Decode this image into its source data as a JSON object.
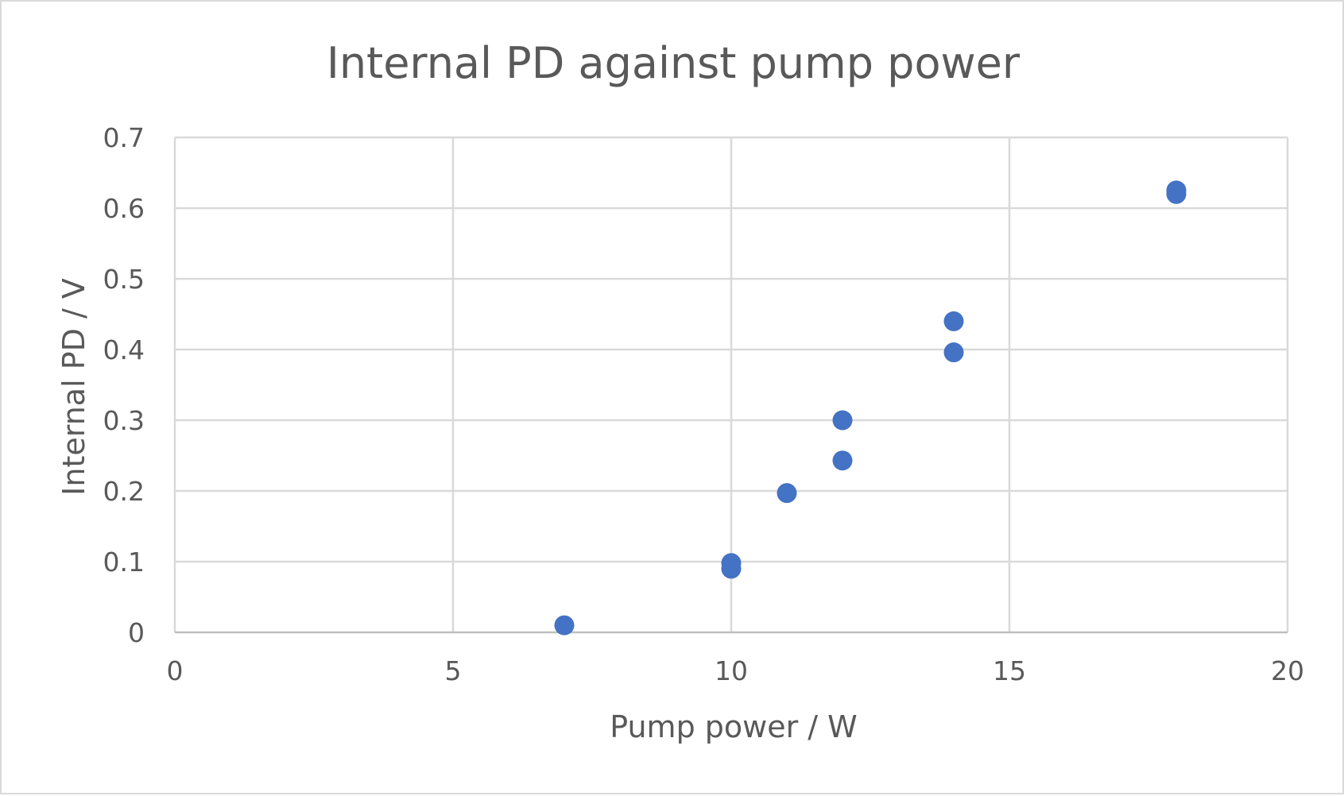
{
  "chart_data": {
    "type": "scatter",
    "title": "Internal PD against pump power",
    "xlabel": "Pump power / W",
    "ylabel": "Internal PD / V",
    "xlim": [
      0,
      20
    ],
    "ylim": [
      0,
      0.7
    ],
    "x_ticks": [
      0,
      5,
      10,
      15,
      20
    ],
    "y_ticks": [
      0,
      0.1,
      0.2,
      0.3,
      0.4,
      0.5,
      0.6,
      0.7
    ],
    "x_tick_labels": [
      "0",
      "5",
      "10",
      "15",
      "20"
    ],
    "y_tick_labels": [
      "0",
      "0.1",
      "0.2",
      "0.3",
      "0.4",
      "0.5",
      "0.6",
      "0.7"
    ],
    "grid": true,
    "legend": "none",
    "series": [
      {
        "color": "#4472c4",
        "points": [
          {
            "x": 7,
            "y": 0.01
          },
          {
            "x": 10,
            "y": 0.098
          },
          {
            "x": 10,
            "y": 0.09
          },
          {
            "x": 11,
            "y": 0.197
          },
          {
            "x": 12,
            "y": 0.3
          },
          {
            "x": 12,
            "y": 0.243
          },
          {
            "x": 14,
            "y": 0.44
          },
          {
            "x": 14,
            "y": 0.396
          },
          {
            "x": 18,
            "y": 0.625
          },
          {
            "x": 18,
            "y": 0.62
          }
        ]
      }
    ]
  }
}
